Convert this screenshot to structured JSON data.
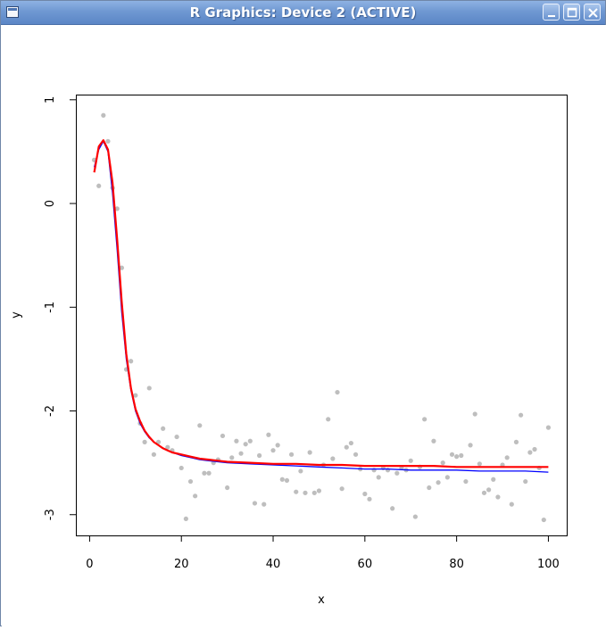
{
  "window": {
    "title": "R Graphics: Device 2 (ACTIVE)",
    "controls": [
      "minimize",
      "maximize",
      "close"
    ]
  },
  "colors": {
    "titlebar": "#6f98d2",
    "points": "#bebebe",
    "blue_curve": "#0000ff",
    "red_curve": "#ff0000"
  },
  "chart_data": {
    "type": "scatter",
    "title": "",
    "xlabel": "x",
    "ylabel": "y",
    "xlim": [
      -3,
      104
    ],
    "ylim": [
      -3.2,
      1.05
    ],
    "xticks": [
      "0",
      "20",
      "40",
      "60",
      "80",
      "100"
    ],
    "yticks": [
      "-3",
      "-2",
      "-1",
      "0",
      "1"
    ],
    "grid": false,
    "legend": "none",
    "points": {
      "x": [
        1,
        2,
        3,
        4,
        5,
        6,
        7,
        8,
        9,
        10,
        11,
        12,
        13,
        14,
        15,
        16,
        17,
        18,
        19,
        20,
        21,
        22,
        23,
        24,
        25,
        26,
        27,
        28,
        29,
        30,
        31,
        32,
        33,
        34,
        35,
        36,
        37,
        38,
        39,
        40,
        41,
        42,
        43,
        44,
        45,
        46,
        47,
        48,
        49,
        50,
        51,
        52,
        53,
        54,
        55,
        56,
        57,
        58,
        59,
        60,
        61,
        62,
        63,
        64,
        65,
        66,
        67,
        68,
        69,
        70,
        71,
        72,
        73,
        74,
        75,
        76,
        77,
        78,
        79,
        80,
        81,
        82,
        83,
        84,
        85,
        86,
        87,
        88,
        89,
        90,
        91,
        92,
        93,
        94,
        95,
        96,
        97,
        98,
        99,
        100
      ],
      "y": [
        0.42,
        0.17,
        0.85,
        0.6,
        0.15,
        -0.05,
        -0.62,
        -1.6,
        -1.52,
        -1.85,
        -2.12,
        -2.3,
        -1.78,
        -2.42,
        -2.3,
        -2.17,
        -2.35,
        -2.38,
        -2.25,
        -2.55,
        -3.04,
        -2.68,
        -2.82,
        -2.14,
        -2.6,
        -2.6,
        -2.5,
        -2.47,
        -2.24,
        -2.74,
        -2.45,
        -2.29,
        -2.41,
        -2.32,
        -2.29,
        -2.89,
        -2.43,
        -2.9,
        -2.23,
        -2.38,
        -2.33,
        -2.66,
        -2.67,
        -2.42,
        -2.78,
        -2.58,
        -2.79,
        -2.4,
        -2.79,
        -2.77,
        -2.52,
        -2.08,
        -2.46,
        -1.82,
        -2.75,
        -2.35,
        -2.31,
        -2.42,
        -2.56,
        -2.8,
        -2.85,
        -2.57,
        -2.64,
        -2.55,
        -2.57,
        -2.94,
        -2.6,
        -2.55,
        -2.57,
        -2.48,
        -3.02,
        -2.54,
        -2.08,
        -2.74,
        -2.29,
        -2.69,
        -2.5,
        -2.64,
        -2.42,
        -2.44,
        -2.43,
        -2.68,
        -2.33,
        -2.03,
        -2.51,
        -2.79,
        -2.76,
        -2.66,
        -2.83,
        -2.52,
        -2.45,
        -2.9,
        -2.3,
        -2.04,
        -2.68,
        -2.4,
        -2.37,
        -2.55,
        -3.05,
        -2.16
      ]
    },
    "series": [
      {
        "color": "#0000ff",
        "x": [
          1,
          2,
          3,
          4,
          5,
          6,
          7,
          8,
          9,
          10,
          11,
          12,
          13,
          14,
          15,
          16,
          17,
          18,
          20,
          22,
          24,
          26,
          28,
          30,
          35,
          40,
          45,
          50,
          55,
          60,
          65,
          70,
          75,
          80,
          85,
          90,
          95,
          100
        ],
        "y": [
          0.35,
          0.52,
          0.6,
          0.5,
          0.1,
          -0.45,
          -1.05,
          -1.5,
          -1.8,
          -2.0,
          -2.12,
          -2.2,
          -2.26,
          -2.3,
          -2.33,
          -2.36,
          -2.38,
          -2.4,
          -2.43,
          -2.45,
          -2.47,
          -2.48,
          -2.49,
          -2.5,
          -2.51,
          -2.52,
          -2.53,
          -2.54,
          -2.55,
          -2.56,
          -2.56,
          -2.57,
          -2.57,
          -2.57,
          -2.58,
          -2.58,
          -2.58,
          -2.59
        ]
      },
      {
        "color": "#ff0000",
        "x": [
          1,
          2,
          3,
          4,
          5,
          6,
          7,
          8,
          9,
          10,
          11,
          12,
          13,
          14,
          15,
          16,
          17,
          18,
          20,
          22,
          24,
          26,
          28,
          30,
          35,
          40,
          45,
          50,
          55,
          60,
          65,
          70,
          75,
          80,
          85,
          90,
          95,
          100
        ],
        "y": [
          0.3,
          0.55,
          0.61,
          0.52,
          0.2,
          -0.35,
          -0.95,
          -1.45,
          -1.78,
          -1.98,
          -2.1,
          -2.19,
          -2.25,
          -2.3,
          -2.33,
          -2.36,
          -2.38,
          -2.4,
          -2.42,
          -2.44,
          -2.46,
          -2.47,
          -2.48,
          -2.49,
          -2.5,
          -2.51,
          -2.51,
          -2.52,
          -2.52,
          -2.53,
          -2.53,
          -2.53,
          -2.53,
          -2.54,
          -2.54,
          -2.54,
          -2.54,
          -2.54
        ]
      }
    ]
  }
}
